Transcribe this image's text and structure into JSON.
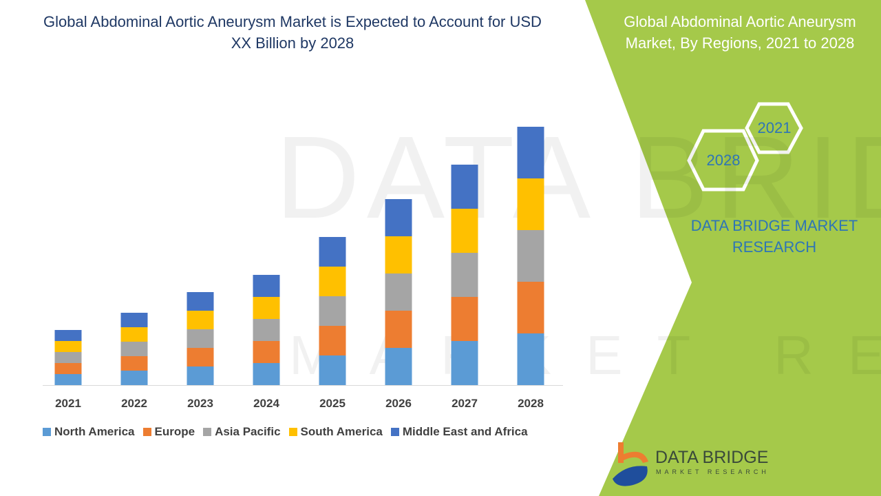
{
  "title": "Global Abdominal Aortic Aneurysm Market is Expected to Account for USD XX Billion by 2028",
  "side_panel": {
    "title": "Global Abdominal Aortic Aneurysm Market, By Regions, 2021 to 2028",
    "hex_years": [
      "2021",
      "2028"
    ],
    "brand": "DATA BRIDGE MARKET RESEARCH",
    "color": "#a5c94a"
  },
  "logo": {
    "name": "DATA BRIDGE",
    "sub": "MARKET RESEARCH"
  },
  "watermark": {
    "main": "DATA BRIDGE",
    "sub": "MARKET RESEARCH"
  },
  "chart_data": {
    "type": "bar",
    "stacked": true,
    "title": "",
    "xlabel": "",
    "ylabel": "",
    "ylim": [
      0,
      40
    ],
    "grid": false,
    "legend_position": "bottom",
    "categories": [
      "2021",
      "2022",
      "2023",
      "2024",
      "2025",
      "2026",
      "2027",
      "2028"
    ],
    "series": [
      {
        "name": "North America",
        "color": "#5b9bd5",
        "values": [
          1.6,
          2.1,
          2.7,
          3.2,
          4.3,
          5.4,
          6.4,
          7.5
        ]
      },
      {
        "name": "Europe",
        "color": "#ed7d31",
        "values": [
          1.6,
          2.1,
          2.7,
          3.2,
          4.3,
          5.4,
          6.4,
          7.5
        ]
      },
      {
        "name": "Asia Pacific",
        "color": "#a5a5a5",
        "values": [
          1.6,
          2.1,
          2.7,
          3.2,
          4.3,
          5.4,
          6.4,
          7.5
        ]
      },
      {
        "name": "South America",
        "color": "#ffc000",
        "values": [
          1.6,
          2.1,
          2.7,
          3.2,
          4.3,
          5.4,
          6.4,
          7.5
        ]
      },
      {
        "name": "Middle East and Africa",
        "color": "#4472c4",
        "values": [
          1.6,
          2.1,
          2.7,
          3.2,
          4.3,
          5.4,
          6.4,
          7.5
        ]
      }
    ]
  }
}
